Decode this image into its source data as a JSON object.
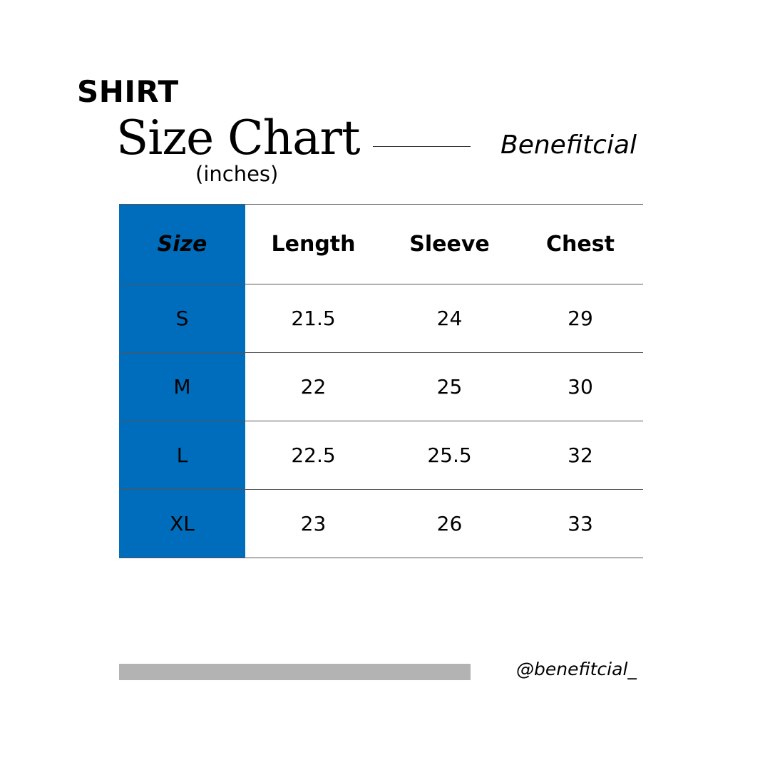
{
  "header": {
    "product": "SHIRT",
    "title": "Size Chart",
    "units": "(inches)",
    "brand": "Benefitcial"
  },
  "table": {
    "columns": [
      "Size",
      "Length",
      "Sleeve",
      "Chest"
    ],
    "rows": [
      [
        "S",
        "21.5",
        "24",
        "29"
      ],
      [
        "M",
        "22",
        "25",
        "30"
      ],
      [
        "L",
        "22.5",
        "25.5",
        "32"
      ],
      [
        "XL",
        "23",
        "26",
        "33"
      ]
    ]
  },
  "footer": {
    "handle": "@benefitcial_"
  },
  "colors": {
    "accent": "#006dbc",
    "footer_bar": "#b3b3b3"
  }
}
